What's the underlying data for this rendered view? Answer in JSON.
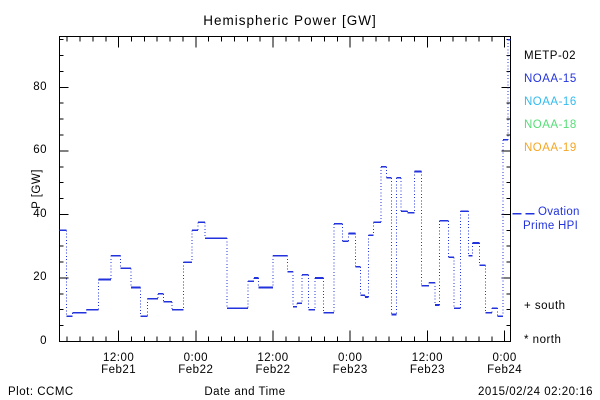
{
  "title": "Hemispheric Power [GW]",
  "axes": {
    "y_label": "P [GW]",
    "y_ticks": [
      {
        "value": 0,
        "label": "0"
      },
      {
        "value": 20,
        "label": "20"
      },
      {
        "value": 40,
        "label": "40"
      },
      {
        "value": 60,
        "label": "60"
      },
      {
        "value": 80,
        "label": "80"
      }
    ],
    "x_ticks": [
      {
        "hour": 9.19,
        "time": "12:00",
        "date": "Feb21"
      },
      {
        "hour": 21.19,
        "time": "0:00",
        "date": "Feb22"
      },
      {
        "hour": 33.19,
        "time": "12:00",
        "date": "Feb22"
      },
      {
        "hour": 45.19,
        "time": "0:00",
        "date": "Feb23"
      },
      {
        "hour": 57.19,
        "time": "12:00",
        "date": "Feb23"
      },
      {
        "hour": 69.19,
        "time": "0:00",
        "date": "Feb24"
      }
    ]
  },
  "legend": {
    "satellites": [
      {
        "label": "METP-02",
        "color": "#000000"
      },
      {
        "label": "NOAA-15",
        "color": "#2233dd"
      },
      {
        "label": "NOAA-16",
        "color": "#33bbee"
      },
      {
        "label": "NOAA-18",
        "color": "#55dd77"
      },
      {
        "label": "NOAA-19",
        "color": "#f5a623"
      }
    ],
    "ovation": {
      "line1": "Ovation",
      "line2": "Prime HPI",
      "color": "#2233dd"
    },
    "south_marker": "+ south",
    "north_marker": "* north"
  },
  "footer": {
    "left": "Plot: CCMC",
    "center": "Date and Time",
    "right": "2015/02/24 02:20:16"
  },
  "chart_data": {
    "type": "line",
    "subtype": "dotted-step",
    "title": "Hemispheric Power [GW]",
    "xlabel": "Date and Time",
    "ylabel": "P [GW]",
    "ylim": [
      0,
      96
    ],
    "x_hours_span": 70.1,
    "x_minor_step_hours": 2,
    "y_minor_step": 5,
    "grid": false,
    "legend_position": "right-outside",
    "line_color": "#2233dd",
    "series": [
      {
        "name": "Ovation Prime HPI",
        "units": "GW",
        "steps_hour_gw": [
          [
            0,
            35
          ],
          [
            1.1,
            8
          ],
          [
            2.0,
            9
          ],
          [
            4.2,
            10
          ],
          [
            6.1,
            19.5
          ],
          [
            8.0,
            27
          ],
          [
            9.5,
            23
          ],
          [
            11.1,
            17
          ],
          [
            12.6,
            8
          ],
          [
            13.7,
            13.5
          ],
          [
            15.3,
            15
          ],
          [
            16.2,
            12.5
          ],
          [
            17.5,
            10
          ],
          [
            19.3,
            25
          ],
          [
            20.6,
            35
          ],
          [
            21.5,
            37.5
          ],
          [
            22.6,
            32.5
          ],
          [
            26.0,
            10.5
          ],
          [
            29.3,
            19
          ],
          [
            30.2,
            20
          ],
          [
            30.9,
            17
          ],
          [
            33.2,
            27
          ],
          [
            35.4,
            22
          ],
          [
            36.3,
            11
          ],
          [
            36.9,
            12
          ],
          [
            37.7,
            21
          ],
          [
            38.7,
            10
          ],
          [
            39.7,
            20
          ],
          [
            41.0,
            9
          ],
          [
            42.7,
            37
          ],
          [
            44.0,
            31.5
          ],
          [
            44.9,
            34
          ],
          [
            46.0,
            23.5
          ],
          [
            46.8,
            14.5
          ],
          [
            47.5,
            14
          ],
          [
            48.0,
            33.5
          ],
          [
            48.8,
            37.5
          ],
          [
            50.0,
            55
          ],
          [
            50.8,
            51.5
          ],
          [
            51.6,
            8.5
          ],
          [
            52.4,
            51.5
          ],
          [
            53.1,
            41
          ],
          [
            54.1,
            40.5
          ],
          [
            55.2,
            53.5
          ],
          [
            56.3,
            17.5
          ],
          [
            57.4,
            18.5
          ],
          [
            58.4,
            11.5
          ],
          [
            59.1,
            38
          ],
          [
            60.5,
            26.5
          ],
          [
            61.3,
            10.5
          ],
          [
            62.3,
            41
          ],
          [
            63.6,
            27
          ],
          [
            64.2,
            31
          ],
          [
            65.3,
            24
          ],
          [
            66.2,
            9
          ],
          [
            67.2,
            10.5
          ],
          [
            68.1,
            8
          ],
          [
            68.9,
            63.5
          ],
          [
            69.7,
            95
          ]
        ]
      }
    ]
  }
}
